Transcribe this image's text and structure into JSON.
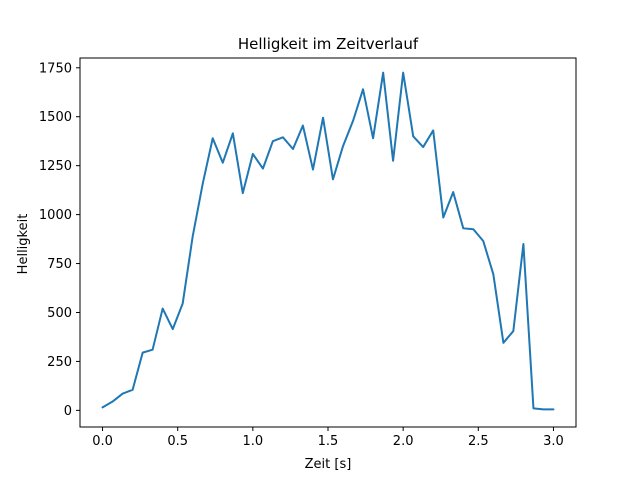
{
  "chart_data": {
    "type": "line",
    "title": "Helligkeit im Zeitverlauf",
    "xlabel": "Zeit [s]",
    "ylabel": "Helligkeit",
    "xlim": [
      -0.15,
      3.15
    ],
    "ylim": [
      -85,
      1800
    ],
    "grid": false,
    "x_ticks": [
      0.0,
      0.5,
      1.0,
      1.5,
      2.0,
      2.5,
      3.0
    ],
    "x_tick_labels": [
      "0.0",
      "0.5",
      "1.0",
      "1.5",
      "2.0",
      "2.5",
      "3.0"
    ],
    "y_ticks": [
      0,
      250,
      500,
      750,
      1000,
      1250,
      1500,
      1750
    ],
    "y_tick_labels": [
      "0",
      "250",
      "500",
      "750",
      "1000",
      "1250",
      "1500",
      "1750"
    ],
    "series": [
      {
        "name": "Helligkeit",
        "color": "#1f77b4",
        "x": [
          0.0,
          0.067,
          0.133,
          0.2,
          0.267,
          0.333,
          0.4,
          0.467,
          0.533,
          0.6,
          0.667,
          0.733,
          0.8,
          0.867,
          0.933,
          1.0,
          1.067,
          1.133,
          1.2,
          1.267,
          1.333,
          1.4,
          1.467,
          1.533,
          1.6,
          1.667,
          1.733,
          1.8,
          1.867,
          1.933,
          2.0,
          2.067,
          2.133,
          2.2,
          2.267,
          2.333,
          2.4,
          2.467,
          2.533,
          2.6,
          2.667,
          2.733,
          2.8,
          2.867,
          2.933,
          3.0
        ],
        "values": [
          15,
          45,
          85,
          105,
          295,
          310,
          520,
          415,
          545,
          890,
          1160,
          1390,
          1265,
          1415,
          1110,
          1310,
          1235,
          1375,
          1395,
          1335,
          1455,
          1230,
          1495,
          1180,
          1350,
          1480,
          1640,
          1390,
          1725,
          1275,
          1725,
          1400,
          1345,
          1430,
          985,
          1115,
          930,
          925,
          865,
          695,
          345,
          405,
          850,
          10,
          5,
          5
        ]
      }
    ]
  }
}
